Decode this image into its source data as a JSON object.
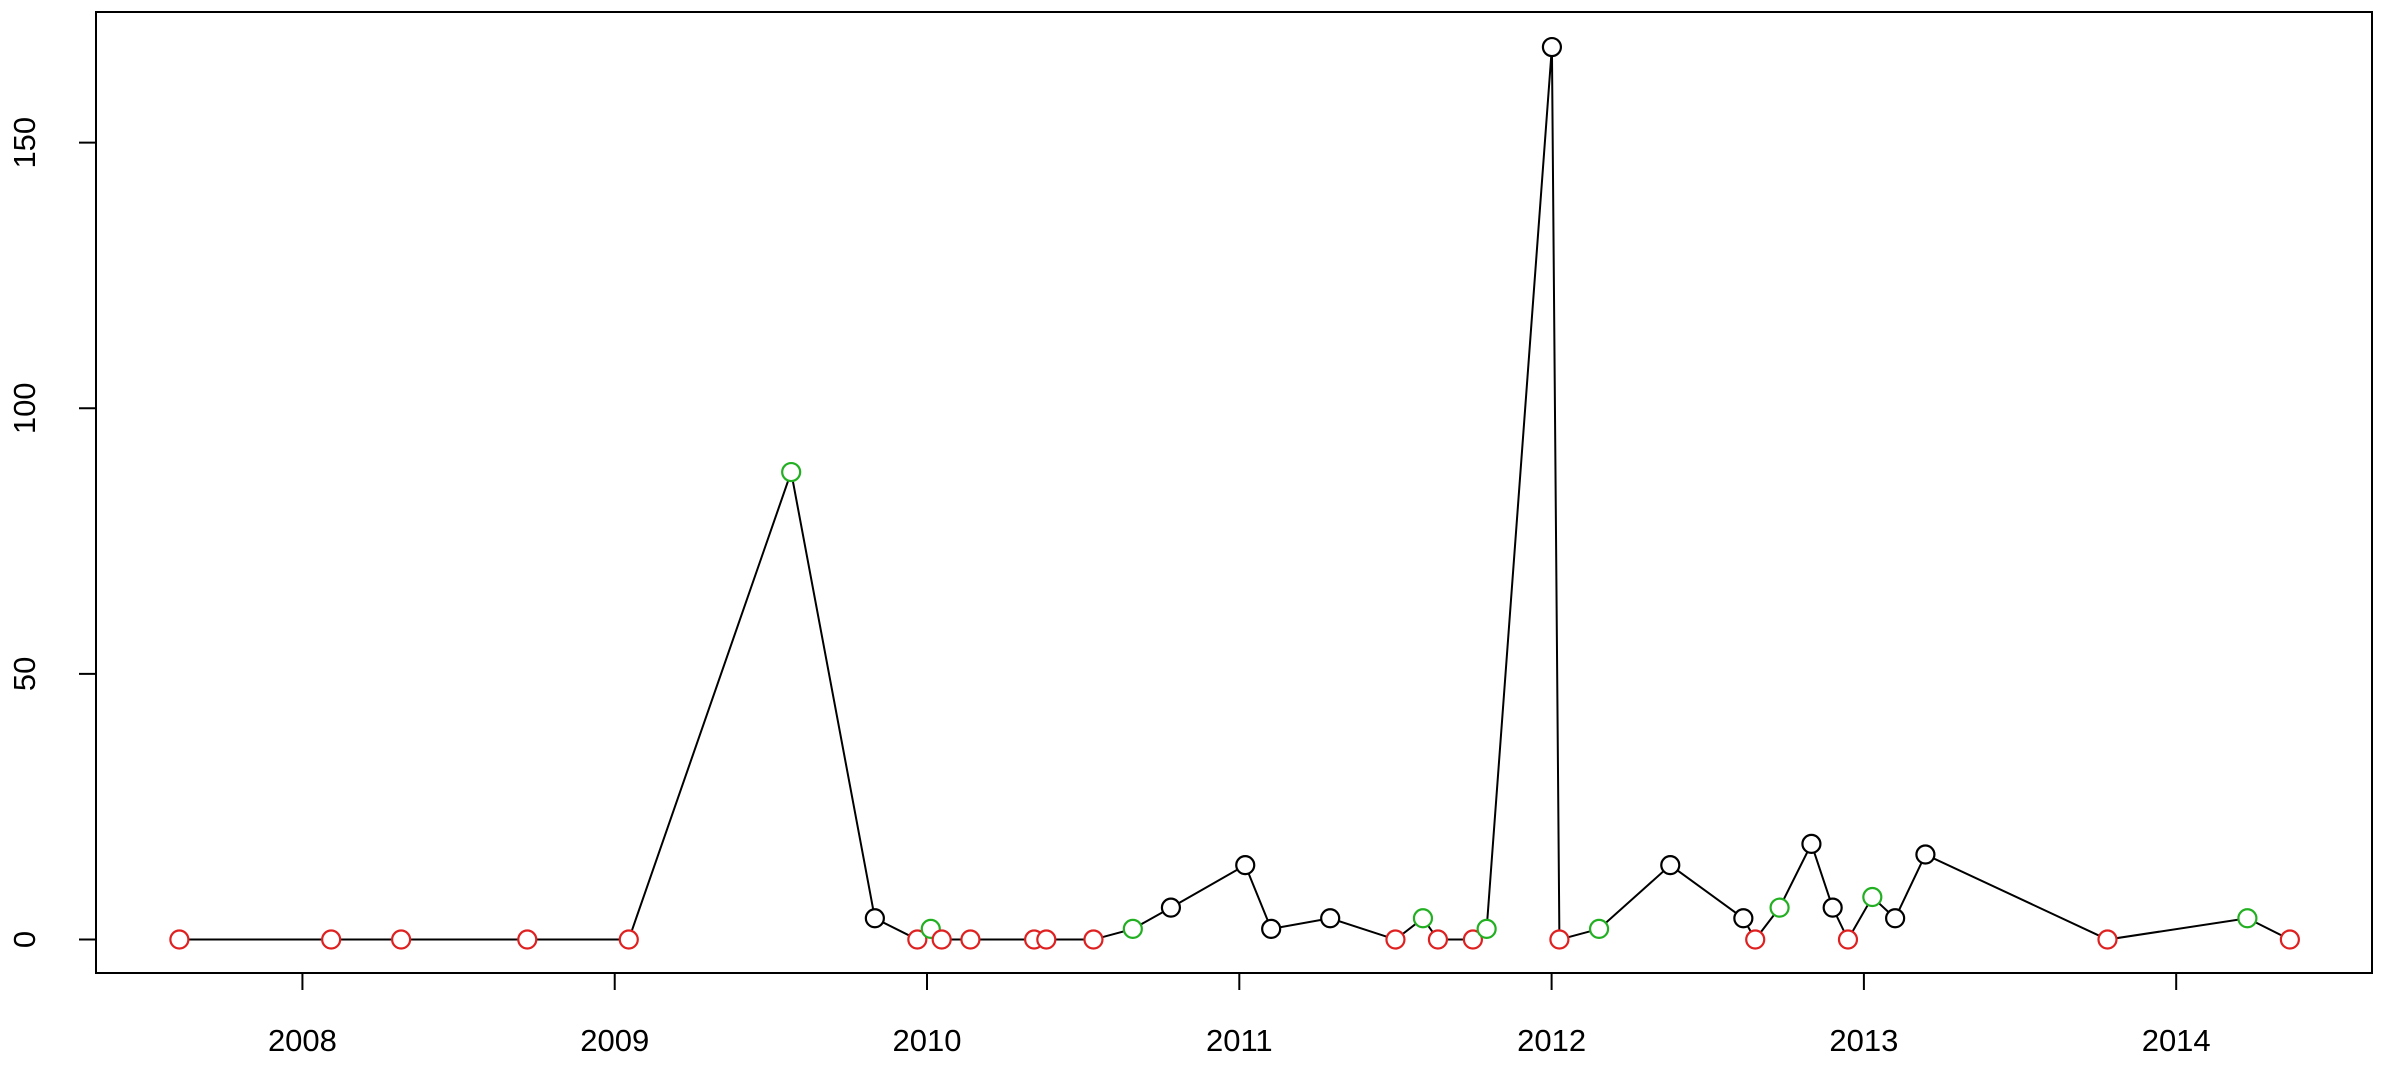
{
  "chart_data": {
    "type": "line",
    "x": [
      2007.606,
      2008.092,
      2008.316,
      2008.72,
      2009.045,
      2009.565,
      2009.833,
      2009.969,
      2010.012,
      2010.047,
      2010.139,
      2010.343,
      2010.382,
      2010.533,
      2010.659,
      2010.781,
      2011.019,
      2011.102,
      2011.291,
      2011.5,
      2011.588,
      2011.636,
      2011.748,
      2011.792,
      2012.001,
      2012.025,
      2012.152,
      2012.38,
      2012.614,
      2012.652,
      2012.73,
      2012.832,
      2012.9,
      2012.949,
      2013.027,
      2013.1,
      2013.197,
      2013.78,
      2014.228,
      2014.364
    ],
    "series": [
      {
        "color": "#000000",
        "values": [
          0,
          0,
          0,
          0,
          0,
          88,
          4,
          0,
          2,
          0,
          0,
          0,
          0,
          0,
          2,
          6,
          14,
          2,
          4,
          0,
          4,
          0,
          0,
          2,
          168,
          0,
          2,
          14,
          4,
          0,
          6,
          18,
          6,
          0,
          8,
          4,
          16,
          0,
          4,
          0
        ],
        "point_colors": [
          "#df2020",
          "#df2020",
          "#df2020",
          "#df2020",
          "#df2020",
          "#22b022",
          "#000000",
          "#df2020",
          "#22b022",
          "#df2020",
          "#df2020",
          "#df2020",
          "#df2020",
          "#df2020",
          "#22b022",
          "#000000",
          "#000000",
          "#000000",
          "#000000",
          "#df2020",
          "#22b022",
          "#df2020",
          "#df2020",
          "#22b022",
          "#000000",
          "#df2020",
          "#22b022",
          "#000000",
          "#000000",
          "#df2020",
          "#22b022",
          "#000000",
          "#000000",
          "#df2020",
          "#22b022",
          "#000000",
          "#000000",
          "#df2020",
          "#22b022",
          "#df2020"
        ]
      }
    ],
    "xlim": [
      2007.339,
      2014.627
    ],
    "xticks": [
      2008,
      2009,
      2010,
      2011,
      2012,
      2013,
      2014
    ],
    "ylim": [
      -6.3,
      174.6
    ],
    "yticks": [
      0,
      50,
      100,
      150
    ]
  }
}
